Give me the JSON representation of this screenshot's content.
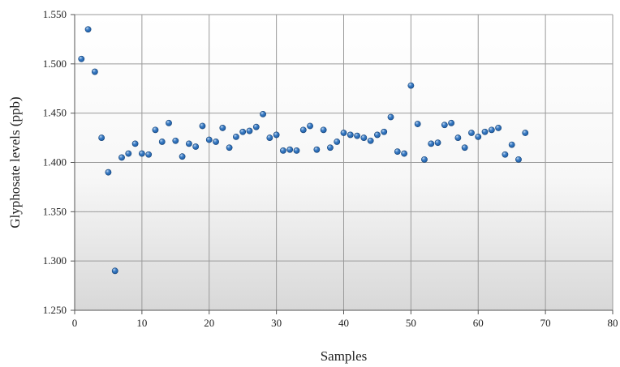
{
  "chart_data": {
    "type": "scatter",
    "xlabel": "Samples",
    "ylabel": "Glyphosate levels (ppb)",
    "xlim": [
      0,
      80
    ],
    "ylim": [
      1.25,
      1.55
    ],
    "xticks": [
      "0",
      "10",
      "20",
      "30",
      "40",
      "50",
      "60",
      "70",
      "80"
    ],
    "yticks": [
      "1.250",
      "1.300",
      "1.350",
      "1.400",
      "1.450",
      "1.500",
      "1.550"
    ],
    "grid": true,
    "legend": "none",
    "colors": {
      "marker": "#1f5fa8",
      "marker_highlight": "#bcd6f2",
      "grid": "#9a9a9a",
      "plot_bg_top": "#ffffff",
      "plot_bg_bottom": "#d8d8d8"
    },
    "points": [
      {
        "x": 1,
        "y": 1.505
      },
      {
        "x": 2,
        "y": 1.535
      },
      {
        "x": 3,
        "y": 1.492
      },
      {
        "x": 4,
        "y": 1.425
      },
      {
        "x": 5,
        "y": 1.39
      },
      {
        "x": 6,
        "y": 1.29
      },
      {
        "x": 7,
        "y": 1.405
      },
      {
        "x": 8,
        "y": 1.409
      },
      {
        "x": 9,
        "y": 1.419
      },
      {
        "x": 10,
        "y": 1.409
      },
      {
        "x": 11,
        "y": 1.408
      },
      {
        "x": 12,
        "y": 1.433
      },
      {
        "x": 13,
        "y": 1.421
      },
      {
        "x": 14,
        "y": 1.44
      },
      {
        "x": 15,
        "y": 1.422
      },
      {
        "x": 16,
        "y": 1.406
      },
      {
        "x": 17,
        "y": 1.419
      },
      {
        "x": 18,
        "y": 1.416
      },
      {
        "x": 19,
        "y": 1.437
      },
      {
        "x": 20,
        "y": 1.423
      },
      {
        "x": 21,
        "y": 1.421
      },
      {
        "x": 22,
        "y": 1.435
      },
      {
        "x": 23,
        "y": 1.415
      },
      {
        "x": 24,
        "y": 1.426
      },
      {
        "x": 25,
        "y": 1.431
      },
      {
        "x": 26,
        "y": 1.432
      },
      {
        "x": 27,
        "y": 1.436
      },
      {
        "x": 28,
        "y": 1.449
      },
      {
        "x": 29,
        "y": 1.425
      },
      {
        "x": 30,
        "y": 1.428
      },
      {
        "x": 31,
        "y": 1.412
      },
      {
        "x": 32,
        "y": 1.413
      },
      {
        "x": 33,
        "y": 1.412
      },
      {
        "x": 34,
        "y": 1.433
      },
      {
        "x": 35,
        "y": 1.437
      },
      {
        "x": 36,
        "y": 1.413
      },
      {
        "x": 37,
        "y": 1.433
      },
      {
        "x": 38,
        "y": 1.415
      },
      {
        "x": 39,
        "y": 1.421
      },
      {
        "x": 40,
        "y": 1.43
      },
      {
        "x": 41,
        "y": 1.428
      },
      {
        "x": 42,
        "y": 1.427
      },
      {
        "x": 43,
        "y": 1.425
      },
      {
        "x": 44,
        "y": 1.422
      },
      {
        "x": 45,
        "y": 1.428
      },
      {
        "x": 46,
        "y": 1.431
      },
      {
        "x": 47,
        "y": 1.446
      },
      {
        "x": 48,
        "y": 1.411
      },
      {
        "x": 49,
        "y": 1.409
      },
      {
        "x": 50,
        "y": 1.478
      },
      {
        "x": 51,
        "y": 1.439
      },
      {
        "x": 52,
        "y": 1.403
      },
      {
        "x": 53,
        "y": 1.419
      },
      {
        "x": 54,
        "y": 1.42
      },
      {
        "x": 55,
        "y": 1.438
      },
      {
        "x": 56,
        "y": 1.44
      },
      {
        "x": 57,
        "y": 1.425
      },
      {
        "x": 58,
        "y": 1.415
      },
      {
        "x": 59,
        "y": 1.43
      },
      {
        "x": 60,
        "y": 1.426
      },
      {
        "x": 61,
        "y": 1.431
      },
      {
        "x": 62,
        "y": 1.433
      },
      {
        "x": 63,
        "y": 1.435
      },
      {
        "x": 64,
        "y": 1.408
      },
      {
        "x": 65,
        "y": 1.418
      },
      {
        "x": 66,
        "y": 1.403
      },
      {
        "x": 67,
        "y": 1.43
      }
    ]
  }
}
